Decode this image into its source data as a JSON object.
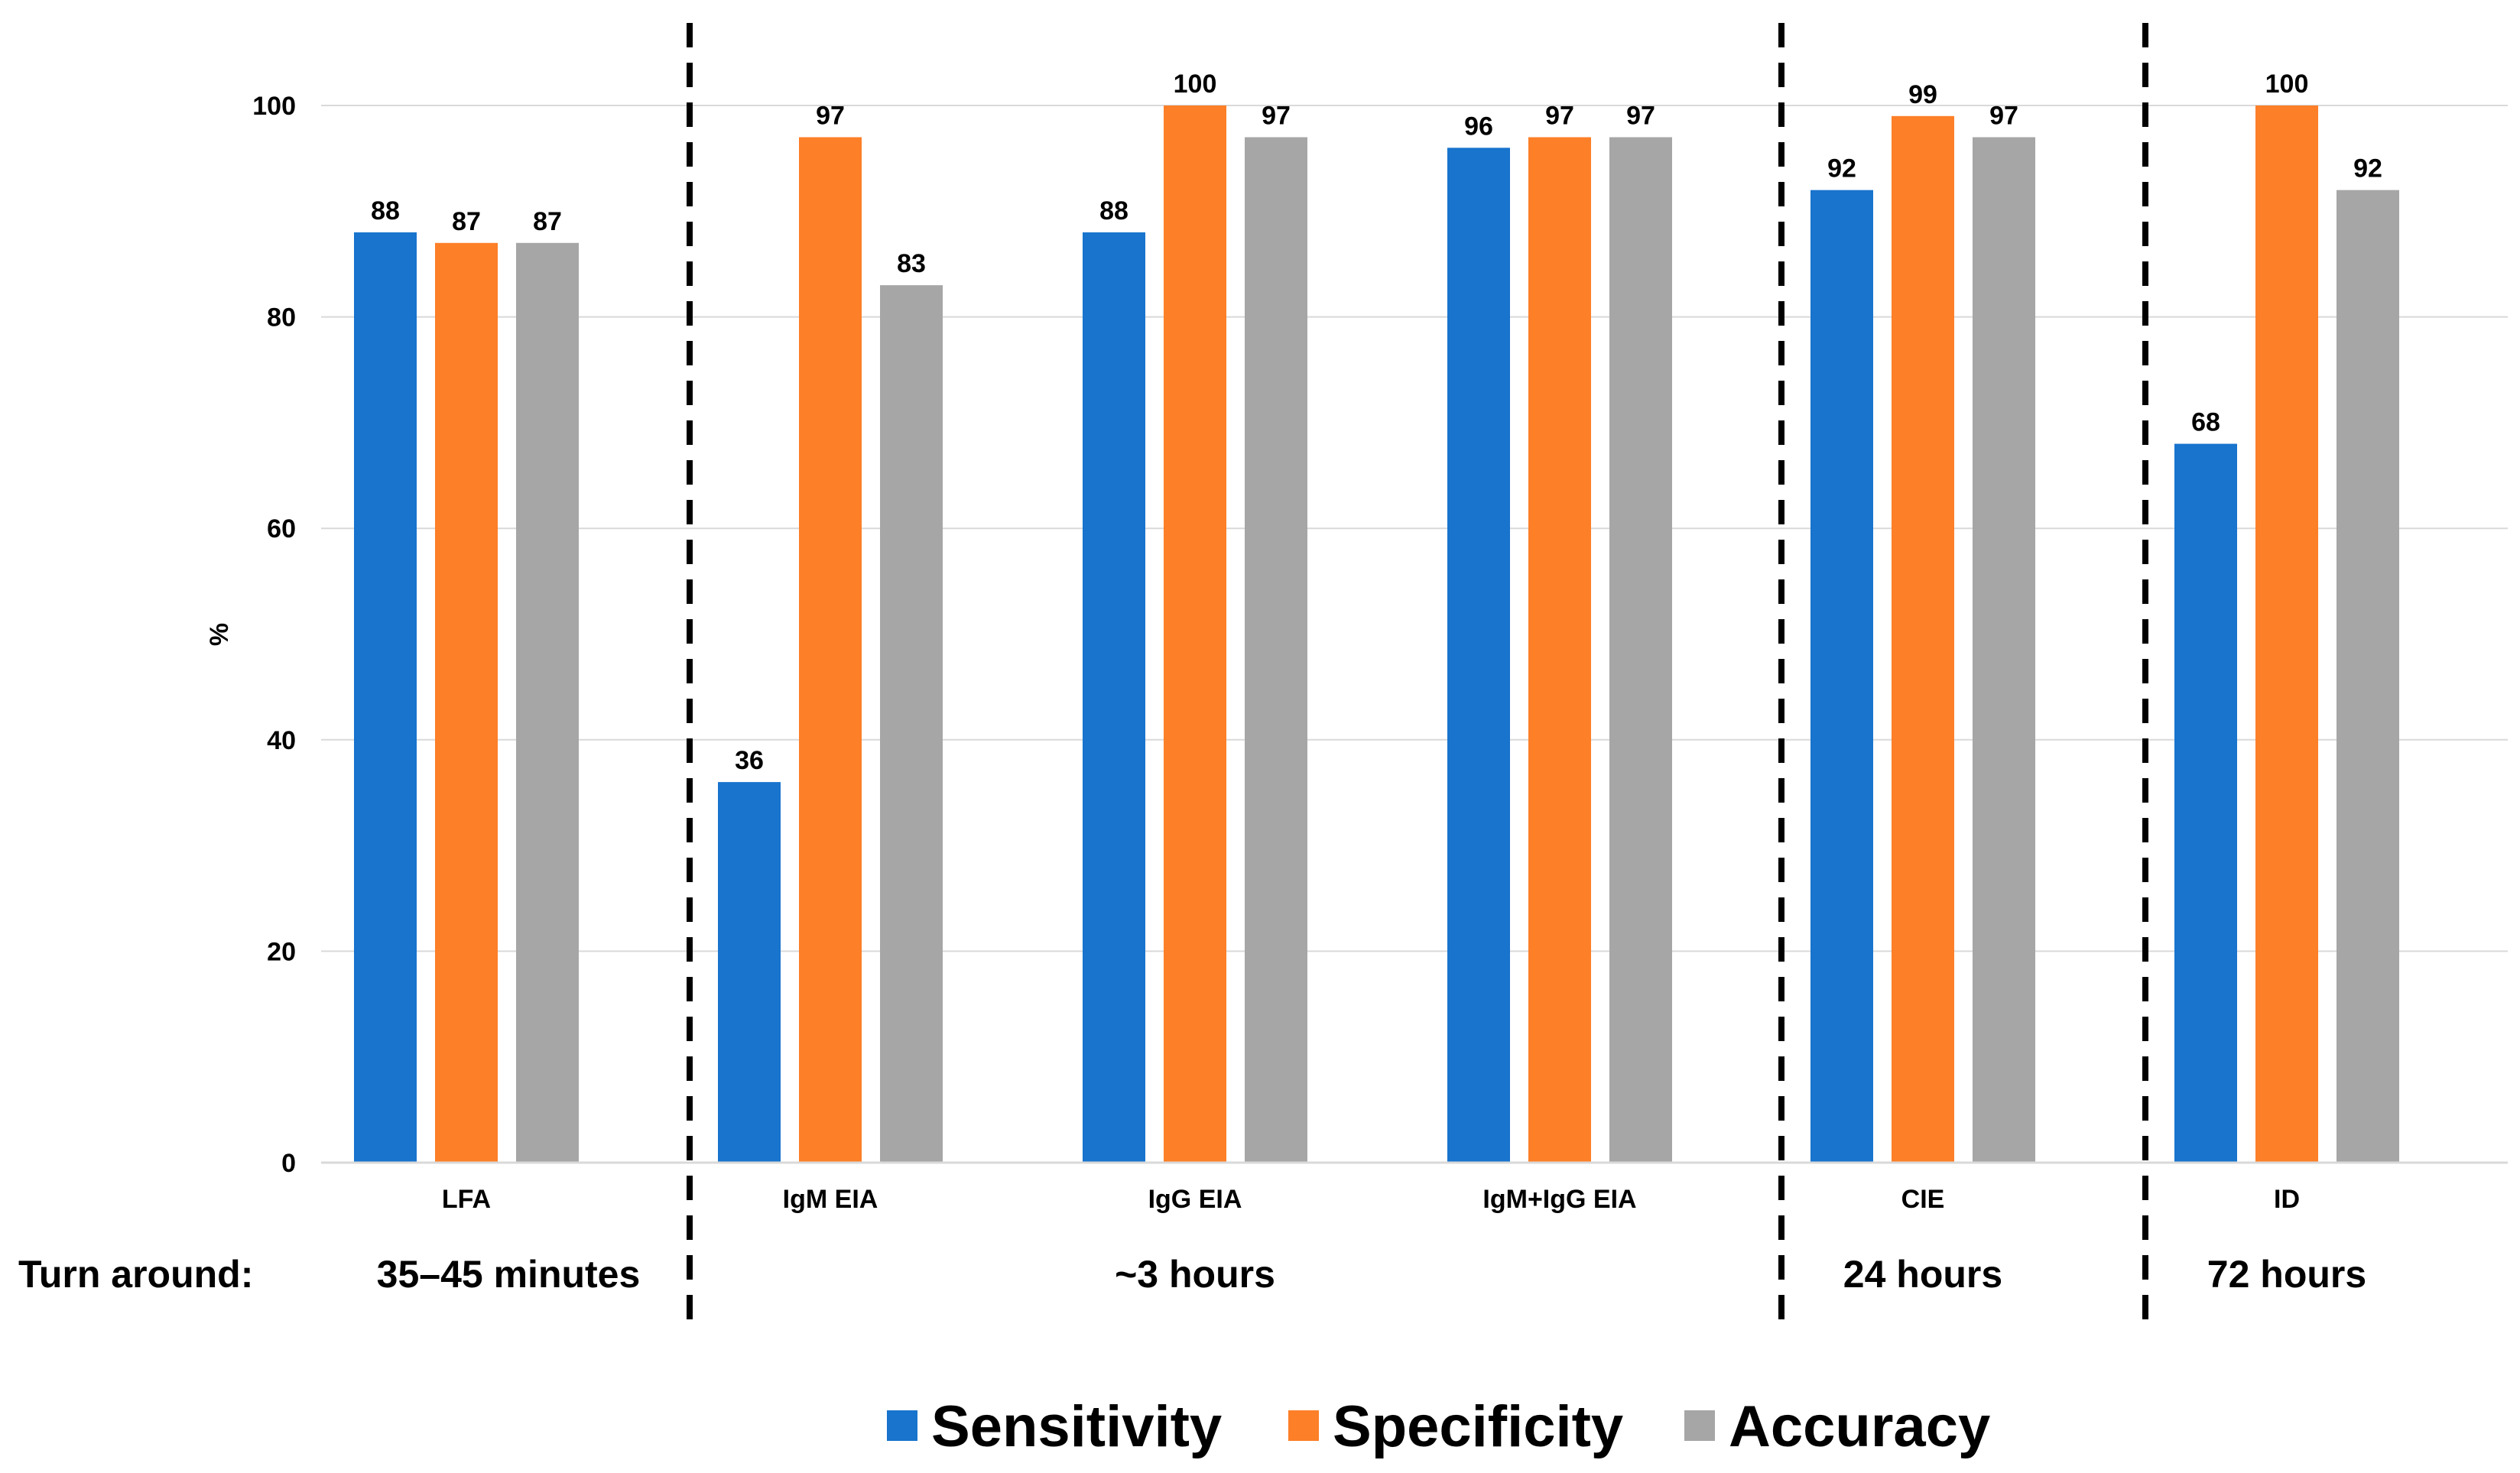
{
  "chart_data": {
    "type": "bar",
    "title": "",
    "xlabel": "",
    "ylabel": "%",
    "ylim": [
      0,
      100
    ],
    "yticks": [
      0,
      20,
      40,
      60,
      80,
      100
    ],
    "grid": true,
    "legend_position": "bottom-center",
    "categories": [
      "LFA",
      "IgM EIA",
      "IgG EIA",
      "IgM+IgG EIA",
      "CIE",
      "ID"
    ],
    "series": [
      {
        "name": "Sensitivity",
        "color": "#1874cd",
        "values": [
          88,
          36,
          88,
          96,
          92,
          68
        ]
      },
      {
        "name": "Specificity",
        "color": "#fd7f28",
        "values": [
          87,
          97,
          100,
          97,
          99,
          100
        ]
      },
      {
        "name": "Accuracy",
        "color": "#a6a6a6",
        "values": [
          87,
          83,
          97,
          97,
          97,
          92
        ]
      }
    ],
    "turnaround": {
      "label": "Turn around:",
      "groups": [
        {
          "text": "35–45 minutes",
          "categories": [
            "LFA"
          ]
        },
        {
          "text": "~3 hours",
          "categories": [
            "IgM EIA",
            "IgG EIA",
            "IgM+IgG EIA"
          ]
        },
        {
          "text": "24 hours",
          "categories": [
            "CIE"
          ]
        },
        {
          "text": "72 hours",
          "categories": [
            "ID"
          ]
        }
      ]
    }
  }
}
